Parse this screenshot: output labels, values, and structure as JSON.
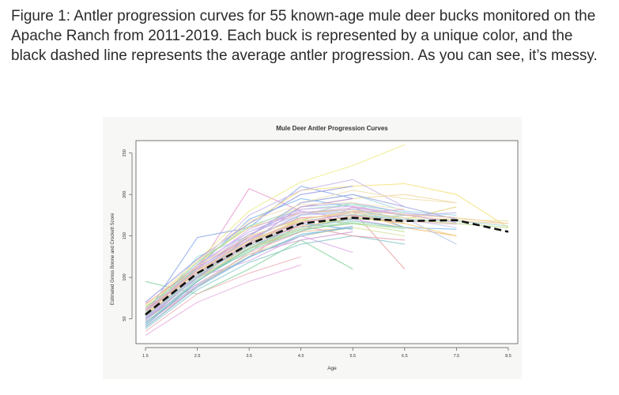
{
  "caption": "Figure 1: Antler progression curves for 55 known-age mule deer bucks monitored on the Apache Ranch from 2011-2019. Each buck is represented by a unique color, and the black dashed line represents the average antler progression. As you can see, it’s messy.",
  "chart_data": {
    "type": "line",
    "title": "Mule Deer Antler Progression Curves",
    "xlabel": "Age",
    "ylabel": "Estimated Gross Boone and Crockett Score",
    "xlim": [
      1.5,
      8.5
    ],
    "ylim": [
      20,
      265
    ],
    "x_ticks": [
      "1.5",
      "2.5",
      "3.5",
      "4.5",
      "5.5",
      "6.5",
      "7.5",
      "8.5"
    ],
    "y_ticks": [
      "50",
      "100",
      "150",
      "200",
      "250"
    ],
    "x_tick_values": [
      1.5,
      2.5,
      3.5,
      4.5,
      5.5,
      6.5,
      7.5,
      8.5
    ],
    "y_tick_values": [
      50,
      100,
      150,
      200,
      250
    ],
    "grid": false,
    "average": {
      "style": "black dashed",
      "x": [
        1.5,
        2.5,
        3.5,
        4.5,
        5.5,
        6.5,
        7.5,
        8.5
      ],
      "y": [
        55,
        105,
        140,
        165,
        172,
        168,
        169,
        155
      ]
    },
    "series": [
      {
        "color": "#e89ad0",
        "x": [
          1.5,
          2.5,
          3.5,
          4.5
        ],
        "y": [
          60,
          110,
          207,
          180
        ]
      },
      {
        "color": "#f0ec8a",
        "x": [
          1.5,
          2.5,
          3.5,
          4.5,
          5.5,
          6.5
        ],
        "y": [
          65,
          120,
          180,
          215,
          235,
          260
        ]
      },
      {
        "color": "#8aa8e8",
        "x": [
          1.5,
          2.5,
          3.5,
          4.5,
          5.5
        ],
        "y": [
          55,
          148,
          160,
          210,
          195
        ]
      },
      {
        "color": "#f6e27a",
        "x": [
          2.5,
          3.5,
          4.5,
          5.5,
          6.5,
          7.5,
          8.5
        ],
        "y": [
          115,
          165,
          205,
          210,
          213,
          200,
          160
        ]
      },
      {
        "color": "#c8b4e6",
        "x": [
          1.5,
          2.5,
          3.5,
          4.5,
          5.5,
          6.5
        ],
        "y": [
          60,
          115,
          175,
          205,
          218,
          185
        ]
      },
      {
        "color": "#86d39c",
        "x": [
          1.5,
          2.5,
          3.5,
          4.5,
          5.5
        ],
        "y": [
          95,
          80,
          110,
          145,
          110
        ]
      },
      {
        "color": "#e8a0a0",
        "x": [
          1.5,
          2.5,
          3.5,
          4.5,
          5.5,
          6.5
        ],
        "y": [
          40,
          90,
          125,
          165,
          180,
          110
        ]
      },
      {
        "color": "#9fd8e8",
        "x": [
          1.5,
          2.5,
          3.5,
          4.5,
          5.5,
          6.5,
          7.5
        ],
        "y": [
          50,
          125,
          150,
          190,
          200,
          180,
          175
        ]
      },
      {
        "color": "#f2b87a",
        "x": [
          2.5,
          3.5,
          4.5,
          5.5,
          6.5,
          7.5
        ],
        "y": [
          95,
          140,
          170,
          180,
          160,
          150
        ]
      },
      {
        "color": "#b8d88a",
        "x": [
          1.5,
          2.5,
          3.5,
          4.5,
          5.5,
          6.5,
          7.5,
          8.5
        ],
        "y": [
          48,
          95,
          135,
          160,
          175,
          170,
          165,
          160
        ]
      },
      {
        "color": "#d8a8e8",
        "x": [
          1.5,
          2.5,
          3.5,
          4.5,
          5.5
        ],
        "y": [
          52,
          100,
          120,
          150,
          130
        ]
      },
      {
        "color": "#7fb8f0",
        "x": [
          1.5,
          2.5,
          3.5,
          4.5,
          5.5,
          6.5,
          7.5
        ],
        "y": [
          58,
          112,
          170,
          195,
          185,
          160,
          158
        ]
      },
      {
        "color": "#f0a8c8",
        "x": [
          1.5,
          2.5,
          3.5,
          4.5,
          5.5,
          6.5
        ],
        "y": [
          45,
          88,
          130,
          155,
          185,
          175
        ]
      },
      {
        "color": "#a8e0b8",
        "x": [
          2.5,
          3.5,
          4.5,
          5.5,
          6.5
        ],
        "y": [
          100,
          130,
          175,
          190,
          165
        ]
      },
      {
        "color": "#e0d070",
        "x": [
          1.5,
          2.5,
          3.5,
          4.5,
          5.5,
          6.5,
          7.5
        ],
        "y": [
          62,
          118,
          160,
          178,
          182,
          170,
          185
        ]
      },
      {
        "color": "#9898e0",
        "x": [
          1.5,
          2.5,
          3.5,
          4.5,
          5.5
        ],
        "y": [
          70,
          122,
          165,
          200,
          210
        ]
      },
      {
        "color": "#f4c8a0",
        "x": [
          2.5,
          3.5,
          4.5,
          5.5,
          6.5,
          7.5,
          8.5
        ],
        "y": [
          108,
          145,
          162,
          170,
          175,
          168,
          165
        ]
      },
      {
        "color": "#88c8c8",
        "x": [
          1.5,
          2.5,
          3.5,
          4.5,
          5.5,
          6.5
        ],
        "y": [
          38,
          85,
          118,
          140,
          150,
          140
        ]
      },
      {
        "color": "#e8b0e0",
        "x": [
          1.5,
          2.5,
          3.5,
          4.5
        ],
        "y": [
          30,
          70,
          95,
          115
        ]
      },
      {
        "color": "#c0e090",
        "x": [
          1.5,
          2.5,
          3.5,
          4.5,
          5.5,
          6.5
        ],
        "y": [
          55,
          102,
          142,
          170,
          165,
          155
        ]
      },
      {
        "color": "#a0b0f0",
        "x": [
          1.5,
          2.5,
          3.5,
          4.5,
          5.5,
          6.5,
          7.5
        ],
        "y": [
          60,
          108,
          150,
          185,
          190,
          178,
          172
        ]
      },
      {
        "color": "#f0d8a0",
        "x": [
          2.5,
          3.5,
          4.5,
          5.5,
          6.5,
          7.5
        ],
        "y": [
          120,
          160,
          185,
          195,
          200,
          190
        ]
      },
      {
        "color": "#d09ad0",
        "x": [
          1.5,
          2.5,
          3.5,
          4.5,
          5.5
        ],
        "y": [
          50,
          92,
          128,
          145,
          155
        ]
      },
      {
        "color": "#90d8a8",
        "x": [
          1.5,
          2.5,
          3.5,
          4.5,
          5.5,
          6.5
        ],
        "y": [
          64,
          110,
          138,
          160,
          170,
          175
        ]
      },
      {
        "color": "#b0c8e8",
        "x": [
          1.5,
          2.5,
          3.5,
          4.5,
          5.5,
          6.5,
          7.5
        ],
        "y": [
          45,
          98,
          145,
          175,
          180,
          172,
          140
        ]
      },
      {
        "color": "#e8c090",
        "x": [
          2.5,
          3.5,
          4.5,
          5.5
        ],
        "y": [
          100,
          135,
          155,
          160
        ]
      },
      {
        "color": "#c8a0f0",
        "x": [
          1.5,
          2.5,
          3.5,
          4.5,
          5.5,
          6.5
        ],
        "y": [
          56,
          115,
          155,
          180,
          170,
          160
        ]
      },
      {
        "color": "#f0e0b0",
        "x": [
          2.5,
          3.5,
          4.5,
          5.5,
          6.5,
          7.5
        ],
        "y": [
          105,
          150,
          190,
          205,
          195,
          190
        ]
      },
      {
        "color": "#70a8d8",
        "x": [
          1.5,
          2.5,
          3.5,
          4.5,
          5.5
        ],
        "y": [
          42,
          95,
          135,
          165,
          158
        ]
      },
      {
        "color": "#e8909c",
        "x": [
          1.5,
          2.5,
          3.5,
          4.5,
          5.5,
          6.5
        ],
        "y": [
          68,
          112,
          148,
          172,
          175,
          165
        ]
      },
      {
        "color": "#a8d8d0",
        "x": [
          1.5,
          2.5,
          3.5,
          4.5,
          5.5,
          6.5,
          7.5,
          8.5
        ],
        "y": [
          52,
          104,
          140,
          168,
          176,
          170,
          168,
          162
        ]
      },
      {
        "color": "#d8e0a0",
        "x": [
          2.5,
          3.5,
          4.5,
          5.5,
          6.5
        ],
        "y": [
          90,
          128,
          150,
          160,
          150
        ]
      },
      {
        "color": "#b898d8",
        "x": [
          1.5,
          2.5,
          3.5,
          4.5,
          5.5
        ],
        "y": [
          48,
          100,
          142,
          185,
          195
        ]
      },
      {
        "color": "#f0b0b8",
        "x": [
          1.5,
          2.5,
          3.5,
          4.5
        ],
        "y": [
          35,
          80,
          105,
          125
        ]
      },
      {
        "color": "#98e0c8",
        "x": [
          1.5,
          2.5,
          3.5,
          4.5,
          5.5,
          6.5
        ],
        "y": [
          58,
          118,
          162,
          182,
          188,
          178
        ]
      },
      {
        "color": "#c8d0f0",
        "x": [
          2.5,
          3.5,
          4.5,
          5.5,
          6.5,
          7.5
        ],
        "y": [
          110,
          155,
          175,
          178,
          170,
          160
        ]
      },
      {
        "color": "#f4d078",
        "x": [
          1.5,
          2.5,
          3.5,
          4.5,
          5.5,
          6.5,
          7.5
        ],
        "y": [
          54,
          106,
          144,
          168,
          172,
          165,
          150
        ]
      },
      {
        "color": "#8cb4d8",
        "x": [
          1.5,
          2.5,
          3.5,
          4.5,
          5.5
        ],
        "y": [
          46,
          90,
          125,
          150,
          162
        ]
      },
      {
        "color": "#e0a8d8",
        "x": [
          1.5,
          2.5,
          3.5,
          4.5,
          5.5,
          6.5
        ],
        "y": [
          62,
          108,
          146,
          166,
          178,
          182
        ]
      },
      {
        "color": "#b4e0a0",
        "x": [
          2.5,
          3.5,
          4.5,
          5.5,
          6.5
        ],
        "y": [
          102,
          138,
          160,
          172,
          168
        ]
      },
      {
        "color": "#a0a8e0",
        "x": [
          1.5,
          2.5,
          3.5,
          4.5,
          5.5,
          6.5,
          7.5
        ],
        "y": [
          50,
          100,
          150,
          190,
          200,
          185,
          170
        ]
      },
      {
        "color": "#f0c0a8",
        "x": [
          1.5,
          2.5,
          3.5,
          4.5,
          5.5
        ],
        "y": [
          56,
          110,
          135,
          158,
          165
        ]
      },
      {
        "color": "#88d0b8",
        "x": [
          1.5,
          2.5,
          3.5,
          4.5,
          5.5,
          6.5
        ],
        "y": [
          44,
          96,
          132,
          156,
          168,
          160
        ]
      },
      {
        "color": "#d8b0f0",
        "x": [
          2.5,
          3.5,
          4.5,
          5.5,
          6.5,
          7.5
        ],
        "y": [
          112,
          158,
          182,
          186,
          176,
          172
        ]
      },
      {
        "color": "#e8e0a0",
        "x": [
          1.5,
          2.5,
          3.5,
          4.5,
          5.5,
          6.5,
          7.5,
          8.5
        ],
        "y": [
          58,
          114,
          150,
          170,
          178,
          172,
          170,
          168
        ]
      },
      {
        "color": "#a8c0d8",
        "x": [
          1.5,
          2.5,
          3.5,
          4.5,
          5.5
        ],
        "y": [
          52,
          102,
          138,
          160,
          170
        ]
      },
      {
        "color": "#e0a0b0",
        "x": [
          1.5,
          2.5,
          3.5,
          4.5,
          5.5,
          6.5
        ],
        "y": [
          60,
          106,
          140,
          162,
          150,
          145
        ]
      },
      {
        "color": "#98d898",
        "x": [
          2.5,
          3.5,
          4.5,
          5.5,
          6.5
        ],
        "y": [
          98,
          134,
          158,
          165,
          160
        ]
      },
      {
        "color": "#c0b8e8",
        "x": [
          1.5,
          2.5,
          3.5,
          4.5,
          5.5,
          6.5,
          7.5
        ],
        "y": [
          48,
          104,
          146,
          176,
          182,
          175,
          178
        ]
      },
      {
        "color": "#f4e0c0",
        "x": [
          1.5,
          2.5,
          3.5,
          4.5,
          5.5,
          6.5
        ],
        "y": [
          66,
          120,
          168,
          188,
          190,
          182
        ]
      },
      {
        "color": "#7cc0e0",
        "x": [
          1.5,
          2.5,
          3.5,
          4.5,
          5.5
        ],
        "y": [
          40,
          88,
          124,
          152,
          160
        ]
      },
      {
        "color": "#e8b8c8",
        "x": [
          2.5,
          3.5,
          4.5,
          5.5,
          6.5,
          7.5
        ],
        "y": [
          104,
          142,
          166,
          174,
          168,
          164
        ]
      },
      {
        "color": "#b8e0c0",
        "x": [
          1.5,
          2.5,
          3.5,
          4.5,
          5.5,
          6.5
        ],
        "y": [
          54,
          98,
          136,
          160,
          166,
          158
        ]
      },
      {
        "color": "#d0a8e0",
        "x": [
          1.5,
          2.5,
          3.5,
          4.5,
          5.5,
          6.5,
          7.5
        ],
        "y": [
          50,
          110,
          152,
          178,
          184,
          176,
          166
        ]
      },
      {
        "color": "#f0d0a0",
        "x": [
          1.5,
          2.5,
          3.5,
          4.5,
          5.5,
          6.5,
          7.5,
          8.5
        ],
        "y": [
          56,
          108,
          144,
          170,
          180,
          176,
          172,
          165
        ]
      }
    ]
  }
}
